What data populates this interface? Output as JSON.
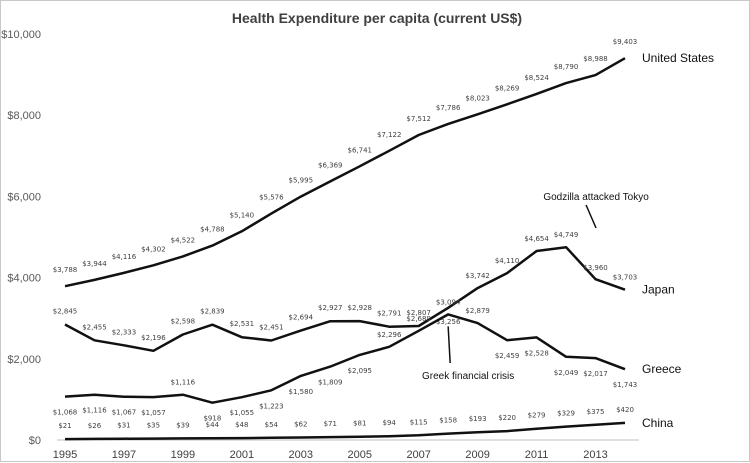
{
  "chart_data": {
    "type": "line",
    "title": "Health Expenditure per capita (current US$)",
    "xlabel": "",
    "ylabel": "",
    "ylim": [
      0,
      10000
    ],
    "yticks": [
      0,
      2000,
      4000,
      6000,
      8000,
      10000
    ],
    "ytick_labels": [
      "$0",
      "$2,000",
      "$4,000",
      "$6,000",
      "$8,000",
      "$10,000"
    ],
    "x": [
      1995,
      1996,
      1997,
      1998,
      1999,
      2000,
      2001,
      2002,
      2003,
      2004,
      2005,
      2006,
      2007,
      2008,
      2009,
      2010,
      2011,
      2012,
      2013,
      2014
    ],
    "xtick_labels": [
      "1995",
      "1997",
      "1999",
      "2001",
      "2003",
      "2005",
      "2007",
      "2009",
      "2011",
      "2013"
    ],
    "grid": false,
    "legend": "none",
    "series": [
      {
        "name": "United States",
        "values": [
          3788,
          3944,
          4116,
          4302,
          4522,
          4788,
          5140,
          5576,
          5995,
          6369,
          6741,
          7122,
          7512,
          7786,
          8023,
          8269,
          8524,
          8790,
          8988,
          9403
        ],
        "labels": [
          "$3,788",
          "$3,944",
          "$4,116",
          "$4,302",
          "$4,522",
          "$4,788",
          "$5,140",
          "$5,576",
          "$5,995",
          "$6,369",
          "$6,741",
          "$7,122",
          "$7,512",
          "$7,786",
          "$8,023",
          "$8,269",
          "$8,524",
          "$8,790",
          "$8,988",
          "$9,403"
        ]
      },
      {
        "name": "Japan",
        "values": [
          2845,
          2455,
          2333,
          2196,
          2598,
          2839,
          2531,
          2451,
          2694,
          2927,
          2928,
          2791,
          2807,
          3256,
          3742,
          4110,
          4654,
          4749,
          3960,
          3703
        ],
        "labels": [
          "$2,845",
          "$2,455",
          "$2,333",
          "$2,196",
          "$2,598",
          "$2,839",
          "$2,531",
          "$2,451",
          "$2,694",
          "$2,927",
          "$2,928",
          "$2,791",
          "$2,807",
          "$3,256",
          "$3,742",
          "$4,110",
          "$4,654",
          "$4,749",
          "$3,960",
          "$3,703"
        ]
      },
      {
        "name": "Greece",
        "values": [
          1068,
          1116,
          1067,
          1057,
          1116,
          918,
          1055,
          1223,
          1580,
          1809,
          2095,
          2296,
          2689,
          3094,
          2879,
          2459,
          2528,
          2049,
          2017,
          1743
        ],
        "labels": [
          "$1,068",
          "$1,116",
          "$1,067",
          "$1,057",
          "$1,116",
          "$918",
          "$1,055",
          "$1,223",
          "$1,580",
          "$1,809",
          "$2,095",
          "$2,296",
          "$2,689",
          "$3,094",
          "$2,879",
          "$2,459",
          "$2,528",
          "$2,049",
          "$2,017",
          "$1,743"
        ]
      },
      {
        "name": "China",
        "values": [
          21,
          26,
          31,
          35,
          39,
          44,
          48,
          54,
          62,
          71,
          81,
          94,
          115,
          158,
          193,
          220,
          279,
          329,
          375,
          420
        ],
        "labels": [
          "$21",
          "$26",
          "$31",
          "$35",
          "$39",
          "$44",
          "$48",
          "$54",
          "$62",
          "$71",
          "$81",
          "$94",
          "$115",
          "$158",
          "$193",
          "$220",
          "$279",
          "$329",
          "$375",
          "$420"
        ]
      }
    ],
    "annotations": [
      {
        "text": "Godzilla attacked Tokyo",
        "series": "Japan",
        "x": 2012
      },
      {
        "text": "Greek financial crisis",
        "series": "Greece",
        "x": 2008
      }
    ]
  }
}
